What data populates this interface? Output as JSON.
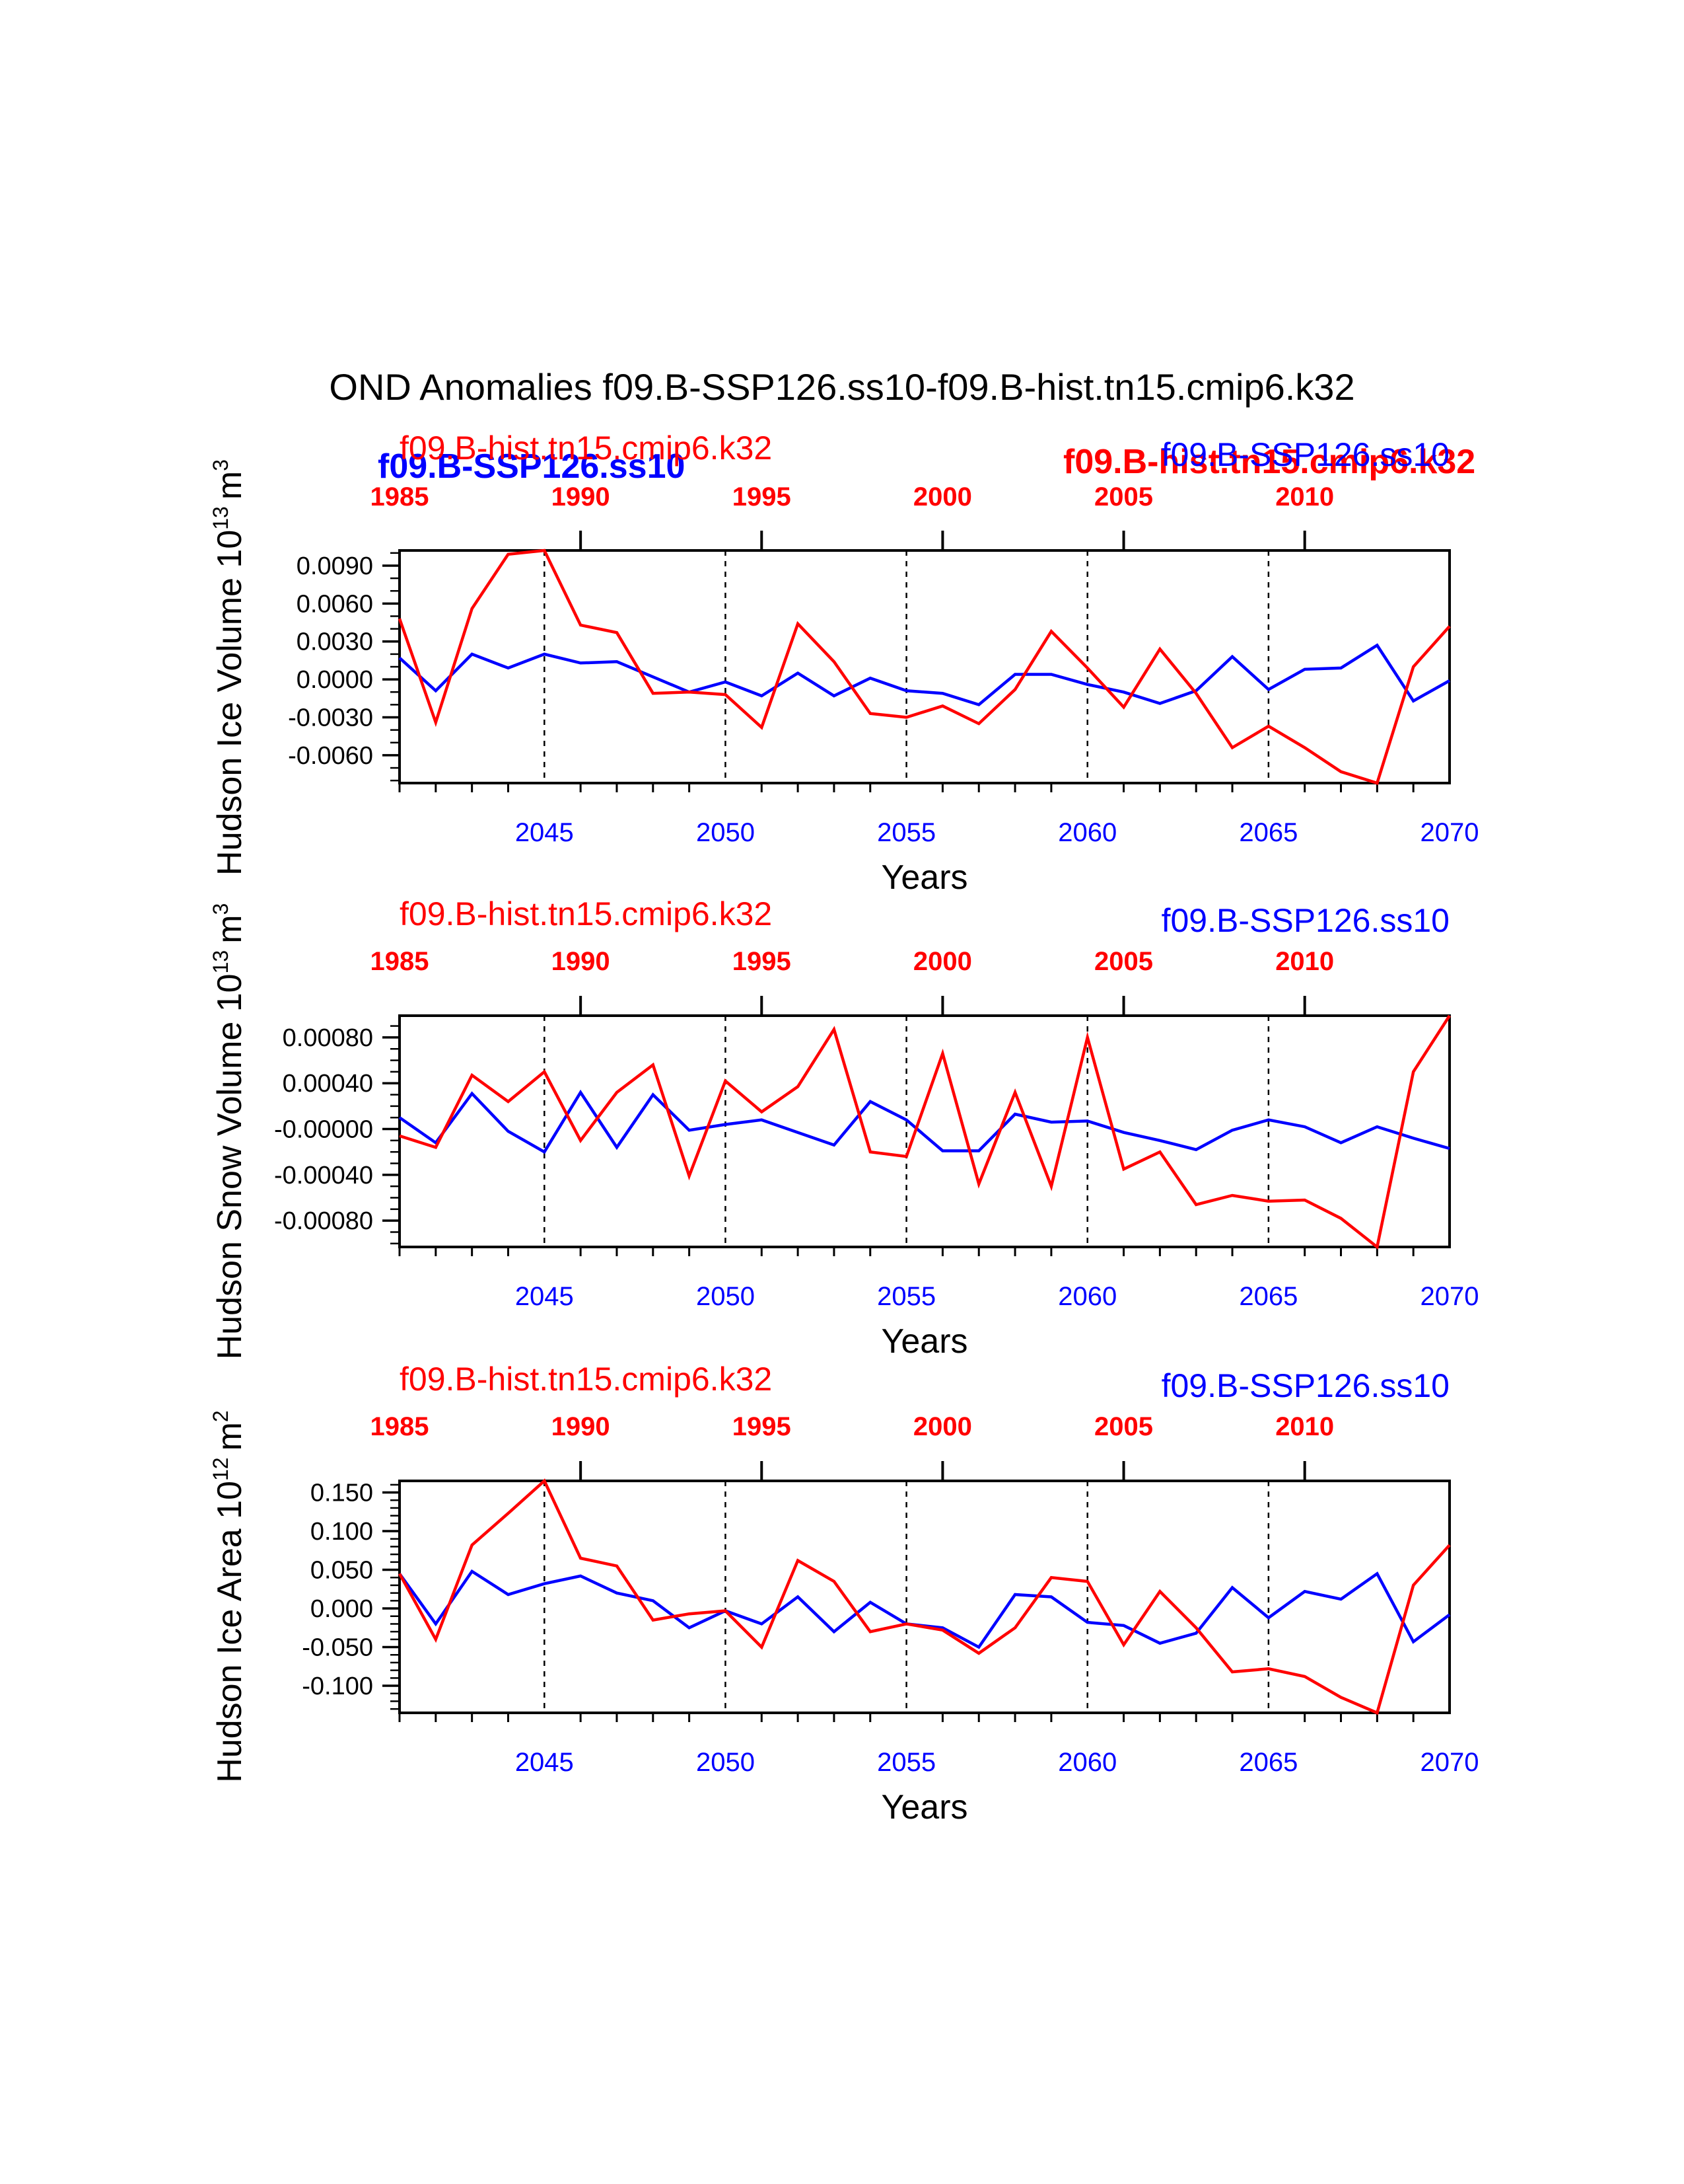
{
  "title": "OND Anomalies f09.B-SSP126.ss10-f09.B-hist.tn15.cmip6.k32",
  "colors": {
    "ssp": "#0000ff",
    "hist": "#ff0000",
    "axis": "#000000"
  },
  "overlay_labels": {
    "ssp": "f09.B-SSP126.ss10",
    "hist": "f09.B-hist.tn15.cmip6.k32"
  },
  "chart_data": [
    {
      "type": "line",
      "ylabel": "Hudson Ice Volume 10",
      "ylabel_exp": "13",
      "ylabel_unit": "m",
      "ylabel_unit_exp": "3",
      "ylim": [
        -0.0082,
        0.0102
      ],
      "yticks": [
        "0.0090",
        "0.0060",
        "0.0030",
        "0.0000",
        "-0.0030",
        "-0.0060"
      ],
      "ytick_values": [
        0.009,
        0.006,
        0.003,
        0.0,
        -0.003,
        -0.006
      ],
      "yminor_step": 0.001,
      "xlabel": "Years",
      "xlim": [
        2041,
        2070
      ],
      "xticks": [
        "2045",
        "2050",
        "2055",
        "2060",
        "2065",
        "2070"
      ],
      "top_xlim": [
        1985,
        2014
      ],
      "top_xticks": [
        "1985",
        "1990",
        "1995",
        "2000",
        "2005",
        "2010"
      ],
      "series": [
        {
          "name": "f09.B-SSP126.ss10",
          "x": [
            2041,
            2042,
            2043,
            2044,
            2045,
            2046,
            2047,
            2048,
            2049,
            2050,
            2051,
            2052,
            2053,
            2054,
            2055,
            2056,
            2057,
            2058,
            2059,
            2060,
            2061,
            2062,
            2063,
            2064,
            2065,
            2066,
            2067,
            2068,
            2069,
            2070
          ],
          "y": [
            0.0017,
            -0.0009,
            0.002,
            0.0009,
            0.002,
            0.0013,
            0.0014,
            0.0002,
            -0.001,
            -0.0002,
            -0.0013,
            0.0005,
            -0.0013,
            0.0001,
            -0.0009,
            -0.0011,
            -0.002,
            0.0004,
            0.0004,
            -0.0004,
            -0.001,
            -0.0019,
            -0.0009,
            0.0018,
            -0.0008,
            0.0008,
            0.0009,
            0.0027,
            -0.0017,
            -0.0001
          ]
        },
        {
          "name": "f09.B-hist.tn15.cmip6.k32",
          "x": [
            2041,
            2042,
            2043,
            2044,
            2045,
            2046,
            2047,
            2048,
            2049,
            2050,
            2051,
            2052,
            2053,
            2054,
            2055,
            2056,
            2057,
            2058,
            2059,
            2060,
            2061,
            2062,
            2063,
            2064,
            2065,
            2066,
            2067,
            2068,
            2069,
            2070
          ],
          "y": [
            0.0048,
            -0.0034,
            0.0056,
            0.0099,
            0.0102,
            0.0043,
            0.0037,
            -0.0011,
            -0.001,
            -0.0012,
            -0.0038,
            0.0044,
            0.0014,
            -0.0027,
            -0.003,
            -0.0021,
            -0.0035,
            -0.0008,
            0.0038,
            0.0009,
            -0.0022,
            0.0024,
            -0.0011,
            -0.0054,
            -0.0037,
            -0.0054,
            -0.0073,
            -0.0082,
            0.001,
            0.0042
          ]
        }
      ]
    },
    {
      "type": "line",
      "ylabel": "Hudson Snow Volume 10",
      "ylabel_exp": "13",
      "ylabel_unit": "m",
      "ylabel_unit_exp": "3",
      "ylim": [
        -0.00103,
        0.00099
      ],
      "yticks": [
        "0.00080",
        "0.00040",
        "-0.00000",
        "-0.00040",
        "-0.00080"
      ],
      "ytick_values": [
        0.0008,
        0.0004,
        0.0,
        -0.0004,
        -0.0008
      ],
      "yminor_step": 0.0001,
      "xlabel": "Years",
      "xlim": [
        2041,
        2070
      ],
      "xticks": [
        "2045",
        "2050",
        "2055",
        "2060",
        "2065",
        "2070"
      ],
      "top_xlim": [
        1985,
        2014
      ],
      "top_xticks": [
        "1985",
        "1990",
        "1995",
        "2000",
        "2005",
        "2010"
      ],
      "series": [
        {
          "name": "f09.B-SSP126.ss10",
          "x": [
            2041,
            2042,
            2043,
            2044,
            2045,
            2046,
            2047,
            2048,
            2049,
            2050,
            2051,
            2052,
            2053,
            2054,
            2055,
            2056,
            2057,
            2058,
            2059,
            2060,
            2061,
            2062,
            2063,
            2064,
            2065,
            2066,
            2067,
            2068,
            2069,
            2070
          ],
          "y": [
            0.0001,
            -0.00012,
            0.00031,
            -2e-05,
            -0.0002,
            0.00032,
            -0.00016,
            0.0003,
            -1e-05,
            4e-05,
            8e-05,
            -3e-05,
            -0.00014,
            0.00024,
            8e-05,
            -0.00019,
            -0.00019,
            0.00013,
            6e-05,
            7e-05,
            -3e-05,
            -0.0001,
            -0.00018,
            -1e-05,
            8e-05,
            2e-05,
            -0.00012,
            2e-05,
            -8e-05,
            -0.00017
          ]
        },
        {
          "name": "f09.B-hist.tn15.cmip6.k32",
          "x": [
            2041,
            2042,
            2043,
            2044,
            2045,
            2046,
            2047,
            2048,
            2049,
            2050,
            2051,
            2052,
            2053,
            2054,
            2055,
            2056,
            2057,
            2058,
            2059,
            2060,
            2061,
            2062,
            2063,
            2064,
            2065,
            2066,
            2067,
            2068,
            2069,
            2070
          ],
          "y": [
            -6e-05,
            -0.00016,
            0.00047,
            0.00024,
            0.0005,
            -0.0001,
            0.00032,
            0.00056,
            -0.00041,
            0.00042,
            0.00015,
            0.00037,
            0.00087,
            -0.0002,
            -0.00024,
            0.00066,
            -0.00048,
            0.00032,
            -0.0005,
            0.0008,
            -0.00035,
            -0.0002,
            -0.00066,
            -0.00058,
            -0.00063,
            -0.00062,
            -0.00078,
            -0.00103,
            0.0005,
            0.00099
          ]
        }
      ]
    },
    {
      "type": "line",
      "ylabel": "Hudson Ice Area 10",
      "ylabel_exp": "12",
      "ylabel_unit": "m",
      "ylabel_unit_exp": "2",
      "ylim": [
        -0.135,
        0.165
      ],
      "yticks": [
        "0.150",
        "0.100",
        "0.050",
        "0.000",
        "-0.050",
        "-0.100"
      ],
      "ytick_values": [
        0.15,
        0.1,
        0.05,
        0.0,
        -0.05,
        -0.1
      ],
      "yminor_step": 0.01,
      "xlabel": "Years",
      "xlim": [
        2041,
        2070
      ],
      "xticks": [
        "2045",
        "2050",
        "2055",
        "2060",
        "2065",
        "2070"
      ],
      "top_xlim": [
        1985,
        2014
      ],
      "top_xticks": [
        "1985",
        "1990",
        "1995",
        "2000",
        "2005",
        "2010"
      ],
      "series": [
        {
          "name": "f09.B-SSP126.ss10",
          "x": [
            2041,
            2042,
            2043,
            2044,
            2045,
            2046,
            2047,
            2048,
            2049,
            2050,
            2051,
            2052,
            2053,
            2054,
            2055,
            2056,
            2057,
            2058,
            2059,
            2060,
            2061,
            2062,
            2063,
            2064,
            2065,
            2066,
            2067,
            2068,
            2069,
            2070
          ],
          "y": [
            0.045,
            -0.02,
            0.048,
            0.018,
            0.032,
            0.042,
            0.02,
            0.01,
            -0.025,
            -0.003,
            -0.02,
            0.015,
            -0.03,
            0.008,
            -0.02,
            -0.025,
            -0.05,
            0.018,
            0.015,
            -0.018,
            -0.022,
            -0.045,
            -0.032,
            0.027,
            -0.012,
            0.022,
            0.012,
            0.045,
            -0.043,
            -0.008
          ]
        },
        {
          "name": "f09.B-hist.tn15.cmip6.k32",
          "x": [
            2041,
            2042,
            2043,
            2044,
            2045,
            2046,
            2047,
            2048,
            2049,
            2050,
            2051,
            2052,
            2053,
            2054,
            2055,
            2056,
            2057,
            2058,
            2059,
            2060,
            2061,
            2062,
            2063,
            2064,
            2065,
            2066,
            2067,
            2068,
            2069,
            2070
          ],
          "y": [
            0.045,
            -0.04,
            0.082,
            0.123,
            0.165,
            0.065,
            0.055,
            -0.015,
            -0.007,
            -0.003,
            -0.05,
            0.062,
            0.035,
            -0.03,
            -0.02,
            -0.028,
            -0.058,
            -0.025,
            0.04,
            0.035,
            -0.047,
            0.022,
            -0.025,
            -0.082,
            -0.078,
            -0.088,
            -0.115,
            -0.135,
            0.03,
            0.082
          ]
        }
      ]
    }
  ]
}
